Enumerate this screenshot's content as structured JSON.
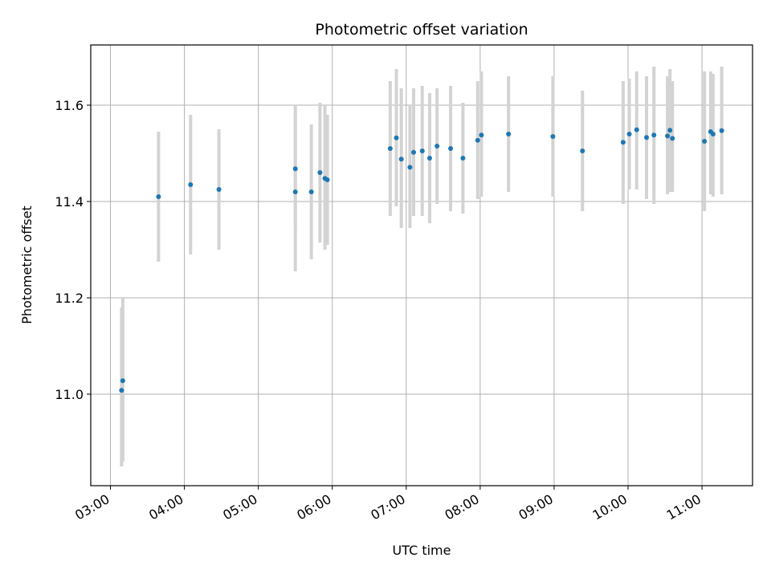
{
  "chart_data": {
    "type": "scatter",
    "title": "Photometric offset variation",
    "xlabel": "UTC time",
    "ylabel": "Photometric offset",
    "x_tick_labels": [
      "03:00",
      "04:00",
      "05:00",
      "06:00",
      "07:00",
      "08:00",
      "09:00",
      "10:00",
      "11:00"
    ],
    "y_ticks": [
      11.0,
      11.2,
      11.4,
      11.6
    ],
    "y_tick_labels": [
      "11.0",
      "11.2",
      "11.4",
      "11.6"
    ],
    "xlim": [
      "02:44",
      "11:41"
    ],
    "ylim": [
      10.81,
      11.725
    ],
    "grid": true,
    "marker_color": "#1f77b4",
    "errorbar_color": "#d3d3d3",
    "points": [
      {
        "x": "03:09",
        "y": 11.008,
        "yerr_low": 10.85,
        "yerr_high": 11.18
      },
      {
        "x": "03:10",
        "y": 11.028,
        "yerr_low": 10.86,
        "yerr_high": 11.2
      },
      {
        "x": "03:39",
        "y": 11.41,
        "yerr_low": 11.275,
        "yerr_high": 11.545
      },
      {
        "x": "04:05",
        "y": 11.435,
        "yerr_low": 11.29,
        "yerr_high": 11.58
      },
      {
        "x": "04:28",
        "y": 11.425,
        "yerr_low": 11.3,
        "yerr_high": 11.55
      },
      {
        "x": "05:30",
        "y": 11.42,
        "yerr_low": 11.255,
        "yerr_high": 11.585
      },
      {
        "x": "05:30",
        "y": 11.468,
        "yerr_low": 11.34,
        "yerr_high": 11.6
      },
      {
        "x": "05:43",
        "y": 11.42,
        "yerr_low": 11.28,
        "yerr_high": 11.56
      },
      {
        "x": "05:50",
        "y": 11.46,
        "yerr_low": 11.315,
        "yerr_high": 11.605
      },
      {
        "x": "05:54",
        "y": 11.448,
        "yerr_low": 11.3,
        "yerr_high": 11.6
      },
      {
        "x": "05:56",
        "y": 11.445,
        "yerr_low": 11.31,
        "yerr_high": 11.58
      },
      {
        "x": "06:47",
        "y": 11.51,
        "yerr_low": 11.37,
        "yerr_high": 11.65
      },
      {
        "x": "06:52",
        "y": 11.532,
        "yerr_low": 11.39,
        "yerr_high": 11.675
      },
      {
        "x": "06:56",
        "y": 11.488,
        "yerr_low": 11.345,
        "yerr_high": 11.635
      },
      {
        "x": "07:03",
        "y": 11.471,
        "yerr_low": 11.345,
        "yerr_high": 11.6
      },
      {
        "x": "07:06",
        "y": 11.502,
        "yerr_low": 11.37,
        "yerr_high": 11.635
      },
      {
        "x": "07:13",
        "y": 11.505,
        "yerr_low": 11.37,
        "yerr_high": 11.64
      },
      {
        "x": "07:19",
        "y": 11.49,
        "yerr_low": 11.355,
        "yerr_high": 11.625
      },
      {
        "x": "07:25",
        "y": 11.515,
        "yerr_low": 11.395,
        "yerr_high": 11.635
      },
      {
        "x": "07:36",
        "y": 11.51,
        "yerr_low": 11.38,
        "yerr_high": 11.64
      },
      {
        "x": "07:46",
        "y": 11.49,
        "yerr_low": 11.375,
        "yerr_high": 11.605
      },
      {
        "x": "07:58",
        "y": 11.527,
        "yerr_low": 11.405,
        "yerr_high": 11.65
      },
      {
        "x": "08:01",
        "y": 11.538,
        "yerr_low": 11.41,
        "yerr_high": 11.67
      },
      {
        "x": "08:23",
        "y": 11.54,
        "yerr_low": 11.42,
        "yerr_high": 11.66
      },
      {
        "x": "08:59",
        "y": 11.535,
        "yerr_low": 11.41,
        "yerr_high": 11.66
      },
      {
        "x": "09:23",
        "y": 11.505,
        "yerr_low": 11.38,
        "yerr_high": 11.63
      },
      {
        "x": "09:56",
        "y": 11.523,
        "yerr_low": 11.395,
        "yerr_high": 11.65
      },
      {
        "x": "10:01",
        "y": 11.54,
        "yerr_low": 11.425,
        "yerr_high": 11.655
      },
      {
        "x": "10:07",
        "y": 11.549,
        "yerr_low": 11.425,
        "yerr_high": 11.67
      },
      {
        "x": "10:15",
        "y": 11.533,
        "yerr_low": 11.405,
        "yerr_high": 11.66
      },
      {
        "x": "10:21",
        "y": 11.538,
        "yerr_low": 11.395,
        "yerr_high": 11.68
      },
      {
        "x": "10:32",
        "y": 11.536,
        "yerr_low": 11.415,
        "yerr_high": 11.66
      },
      {
        "x": "10:34",
        "y": 11.548,
        "yerr_low": 11.42,
        "yerr_high": 11.675
      },
      {
        "x": "10:36",
        "y": 11.531,
        "yerr_low": 11.42,
        "yerr_high": 11.65
      },
      {
        "x": "11:02",
        "y": 11.525,
        "yerr_low": 11.38,
        "yerr_high": 11.67
      },
      {
        "x": "11:07",
        "y": 11.545,
        "yerr_low": 11.415,
        "yerr_high": 11.67
      },
      {
        "x": "11:09",
        "y": 11.54,
        "yerr_low": 11.41,
        "yerr_high": 11.665
      },
      {
        "x": "11:16",
        "y": 11.547,
        "yerr_low": 11.415,
        "yerr_high": 11.68
      }
    ]
  }
}
